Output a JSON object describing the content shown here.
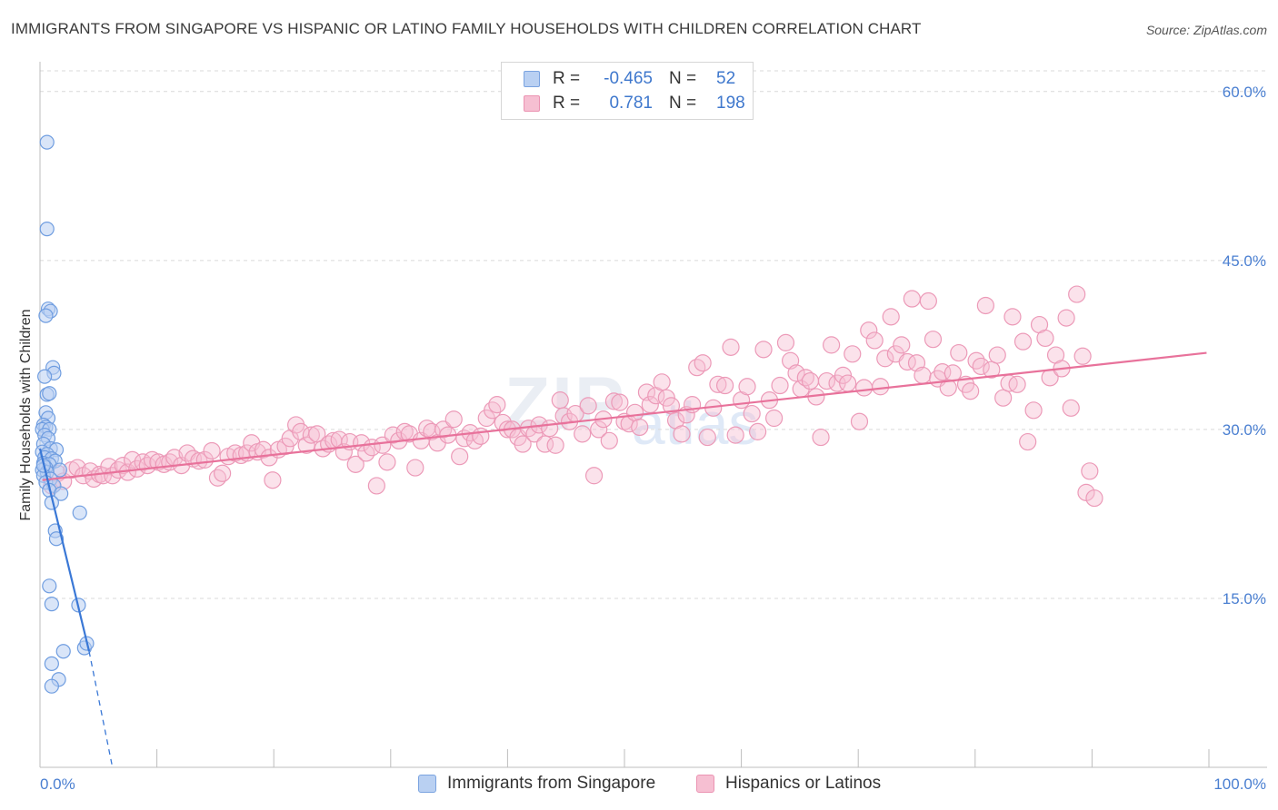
{
  "title": "IMMIGRANTS FROM SINGAPORE VS HISPANIC OR LATINO FAMILY HOUSEHOLDS WITH CHILDREN CORRELATION CHART",
  "source": "Source: ZipAtlas.com",
  "watermark": {
    "zip": "ZIP",
    "atlas": "atlas"
  },
  "legend": {
    "rows": [
      {
        "r_label": "R =",
        "r_value": "-0.465",
        "n_label": "N =",
        "n_value": "52"
      },
      {
        "r_label": "R =",
        "r_value": "0.781",
        "n_label": "N =",
        "n_value": "198"
      }
    ]
  },
  "colors": {
    "blue": "#3a78d6",
    "blue_fill": "#b9d0f2",
    "pink": "#e8729b",
    "pink_fill": "#f6bfd2",
    "tick_label": "#4a7fd1",
    "grid": "#d9d9d9"
  },
  "chart_data": {
    "type": "scatter",
    "title": "IMMIGRANTS FROM SINGAPORE VS HISPANIC OR LATINO FAMILY HOUSEHOLDS WITH CHILDREN CORRELATION CHART",
    "xlabel": "",
    "ylabel": "Family Households with Children",
    "xlim": [
      0,
      100
    ],
    "ylim": [
      0,
      62
    ],
    "x_tick_labels": [
      "0.0%",
      "100.0%"
    ],
    "y_ticks": [
      15,
      30,
      45,
      60
    ],
    "y_tick_labels": [
      "15.0%",
      "30.0%",
      "45.0%",
      "60.0%"
    ],
    "series": [
      {
        "name": "Immigrants from Singapore",
        "color": "#3a78d6",
        "r": -0.465,
        "n": 52,
        "trend": {
          "x0": 0.0,
          "y0": 28.3,
          "x1": 4.2,
          "y1": 10.3,
          "dashed_to_x": 6.2,
          "dashed_to_y": 0.0
        },
        "points": [
          [
            0.6,
            55.5
          ],
          [
            0.6,
            47.8
          ],
          [
            0.7,
            40.7
          ],
          [
            0.9,
            40.5
          ],
          [
            0.5,
            40.1
          ],
          [
            1.1,
            35.5
          ],
          [
            1.2,
            35.0
          ],
          [
            0.4,
            34.7
          ],
          [
            0.6,
            33.1
          ],
          [
            0.8,
            33.2
          ],
          [
            0.5,
            31.5
          ],
          [
            0.7,
            31.0
          ],
          [
            0.3,
            30.4
          ],
          [
            0.5,
            30.2
          ],
          [
            0.2,
            30.0
          ],
          [
            0.8,
            30.0
          ],
          [
            0.4,
            29.5
          ],
          [
            0.7,
            29.2
          ],
          [
            0.3,
            28.7
          ],
          [
            0.9,
            28.3
          ],
          [
            1.4,
            28.2
          ],
          [
            0.2,
            28.0
          ],
          [
            0.6,
            27.8
          ],
          [
            0.4,
            27.5
          ],
          [
            1.0,
            27.4
          ],
          [
            1.3,
            27.2
          ],
          [
            0.3,
            27.0
          ],
          [
            0.8,
            26.9
          ],
          [
            0.5,
            26.6
          ],
          [
            0.2,
            26.4
          ],
          [
            1.7,
            26.4
          ],
          [
            0.6,
            26.2
          ],
          [
            0.3,
            25.9
          ],
          [
            0.9,
            25.6
          ],
          [
            0.5,
            25.3
          ],
          [
            1.2,
            25.0
          ],
          [
            0.8,
            24.6
          ],
          [
            1.8,
            24.3
          ],
          [
            1.0,
            23.5
          ],
          [
            3.4,
            22.6
          ],
          [
            1.3,
            21.0
          ],
          [
            1.4,
            20.3
          ],
          [
            0.8,
            16.1
          ],
          [
            1.0,
            14.5
          ],
          [
            3.3,
            14.4
          ],
          [
            3.8,
            10.6
          ],
          [
            4.0,
            11.0
          ],
          [
            2.0,
            10.3
          ],
          [
            1.0,
            9.2
          ],
          [
            1.6,
            7.8
          ],
          [
            1.0,
            7.2
          ],
          [
            0.3,
            26.8
          ]
        ]
      },
      {
        "name": "Hispanics or Latinos",
        "color": "#e8729b",
        "r": 0.781,
        "n": 198,
        "trend": {
          "x0": 0.2,
          "y0": 25.5,
          "x1": 99.8,
          "y1": 36.8
        },
        "points": [
          [
            1.0,
            25.0
          ],
          [
            1.5,
            26.1
          ],
          [
            2.0,
            25.4
          ],
          [
            2.7,
            26.4
          ],
          [
            3.2,
            26.6
          ],
          [
            3.7,
            25.9
          ],
          [
            4.3,
            26.3
          ],
          [
            4.6,
            25.6
          ],
          [
            5.1,
            26.0
          ],
          [
            5.4,
            25.9
          ],
          [
            5.9,
            26.7
          ],
          [
            6.2,
            25.9
          ],
          [
            6.7,
            26.4
          ],
          [
            7.1,
            26.8
          ],
          [
            7.5,
            26.2
          ],
          [
            7.9,
            27.3
          ],
          [
            8.3,
            26.5
          ],
          [
            8.8,
            27.1
          ],
          [
            9.2,
            26.8
          ],
          [
            9.6,
            27.3
          ],
          [
            10.1,
            27.1
          ],
          [
            10.6,
            26.9
          ],
          [
            11.1,
            27.1
          ],
          [
            11.5,
            27.5
          ],
          [
            12.1,
            26.8
          ],
          [
            12.6,
            27.9
          ],
          [
            13.1,
            27.4
          ],
          [
            13.6,
            27.2
          ],
          [
            14.1,
            27.3
          ],
          [
            14.7,
            28.1
          ],
          [
            15.2,
            25.7
          ],
          [
            15.6,
            26.1
          ],
          [
            16.1,
            27.6
          ],
          [
            16.7,
            27.9
          ],
          [
            17.2,
            27.7
          ],
          [
            17.7,
            27.9
          ],
          [
            18.1,
            28.8
          ],
          [
            18.6,
            28.0
          ],
          [
            19.1,
            28.2
          ],
          [
            19.6,
            27.5
          ],
          [
            19.9,
            25.5
          ],
          [
            20.4,
            28.2
          ],
          [
            21.0,
            28.5
          ],
          [
            21.4,
            29.2
          ],
          [
            21.9,
            30.4
          ],
          [
            22.3,
            29.8
          ],
          [
            22.8,
            28.6
          ],
          [
            23.2,
            29.5
          ],
          [
            23.7,
            29.6
          ],
          [
            24.2,
            28.3
          ],
          [
            24.7,
            28.7
          ],
          [
            25.1,
            29.0
          ],
          [
            25.6,
            29.1
          ],
          [
            26.0,
            28.0
          ],
          [
            26.5,
            28.9
          ],
          [
            27.0,
            26.9
          ],
          [
            27.5,
            28.8
          ],
          [
            27.9,
            27.9
          ],
          [
            28.4,
            28.4
          ],
          [
            28.8,
            25.0
          ],
          [
            29.3,
            28.6
          ],
          [
            29.7,
            27.1
          ],
          [
            30.2,
            29.5
          ],
          [
            30.7,
            29.0
          ],
          [
            31.2,
            29.8
          ],
          [
            31.6,
            29.6
          ],
          [
            32.1,
            26.6
          ],
          [
            32.6,
            29.0
          ],
          [
            33.1,
            30.1
          ],
          [
            33.5,
            29.8
          ],
          [
            34.0,
            28.8
          ],
          [
            34.5,
            30.0
          ],
          [
            34.9,
            29.5
          ],
          [
            35.4,
            30.9
          ],
          [
            35.9,
            27.6
          ],
          [
            36.3,
            29.2
          ],
          [
            36.8,
            29.7
          ],
          [
            37.2,
            29.0
          ],
          [
            37.7,
            29.4
          ],
          [
            38.2,
            31.0
          ],
          [
            38.7,
            31.7
          ],
          [
            39.1,
            32.2
          ],
          [
            39.6,
            30.6
          ],
          [
            40.0,
            30.0
          ],
          [
            40.4,
            30.0
          ],
          [
            40.9,
            29.3
          ],
          [
            41.3,
            28.7
          ],
          [
            41.8,
            30.1
          ],
          [
            42.3,
            29.6
          ],
          [
            42.7,
            30.4
          ],
          [
            43.2,
            28.7
          ],
          [
            43.6,
            30.1
          ],
          [
            44.1,
            28.6
          ],
          [
            44.5,
            32.6
          ],
          [
            44.8,
            31.2
          ],
          [
            45.3,
            30.7
          ],
          [
            45.8,
            31.4
          ],
          [
            46.4,
            29.6
          ],
          [
            46.9,
            32.1
          ],
          [
            47.4,
            25.9
          ],
          [
            47.8,
            30.0
          ],
          [
            48.2,
            30.9
          ],
          [
            48.7,
            29.0
          ],
          [
            49.1,
            32.5
          ],
          [
            49.6,
            32.4
          ],
          [
            50.0,
            30.7
          ],
          [
            50.4,
            30.5
          ],
          [
            50.9,
            31.5
          ],
          [
            51.3,
            30.2
          ],
          [
            51.9,
            33.3
          ],
          [
            52.2,
            32.2
          ],
          [
            52.7,
            33.0
          ],
          [
            53.2,
            34.2
          ],
          [
            53.6,
            32.8
          ],
          [
            54.0,
            32.1
          ],
          [
            54.4,
            30.8
          ],
          [
            54.9,
            29.6
          ],
          [
            55.3,
            31.3
          ],
          [
            55.8,
            32.2
          ],
          [
            56.2,
            35.5
          ],
          [
            56.7,
            35.9
          ],
          [
            57.1,
            29.3
          ],
          [
            57.6,
            31.9
          ],
          [
            58.0,
            34.0
          ],
          [
            58.6,
            33.9
          ],
          [
            59.1,
            37.3
          ],
          [
            59.5,
            29.5
          ],
          [
            60.0,
            32.6
          ],
          [
            60.5,
            33.8
          ],
          [
            60.9,
            31.4
          ],
          [
            61.4,
            29.8
          ],
          [
            61.9,
            37.1
          ],
          [
            62.4,
            32.6
          ],
          [
            62.8,
            31.0
          ],
          [
            63.3,
            33.9
          ],
          [
            63.8,
            37.7
          ],
          [
            64.2,
            36.1
          ],
          [
            64.7,
            35.0
          ],
          [
            65.1,
            33.6
          ],
          [
            65.5,
            34.6
          ],
          [
            65.9,
            34.3
          ],
          [
            66.4,
            32.9
          ],
          [
            66.8,
            29.3
          ],
          [
            67.3,
            34.3
          ],
          [
            67.7,
            37.5
          ],
          [
            68.2,
            34.1
          ],
          [
            68.7,
            34.8
          ],
          [
            69.1,
            34.1
          ],
          [
            69.5,
            36.7
          ],
          [
            70.1,
            30.7
          ],
          [
            70.5,
            33.7
          ],
          [
            70.9,
            38.8
          ],
          [
            71.4,
            37.9
          ],
          [
            71.9,
            33.8
          ],
          [
            72.3,
            36.3
          ],
          [
            72.8,
            40.0
          ],
          [
            73.2,
            36.7
          ],
          [
            73.7,
            37.5
          ],
          [
            74.2,
            36.0
          ],
          [
            74.6,
            41.6
          ],
          [
            75.0,
            35.9
          ],
          [
            75.5,
            34.8
          ],
          [
            76.0,
            41.4
          ],
          [
            76.4,
            38.0
          ],
          [
            76.8,
            34.5
          ],
          [
            77.2,
            35.1
          ],
          [
            77.7,
            33.7
          ],
          [
            78.1,
            35.0
          ],
          [
            78.6,
            36.8
          ],
          [
            79.2,
            34.0
          ],
          [
            79.6,
            33.4
          ],
          [
            80.1,
            36.1
          ],
          [
            80.5,
            35.6
          ],
          [
            80.9,
            41.0
          ],
          [
            81.4,
            35.3
          ],
          [
            81.9,
            36.6
          ],
          [
            82.4,
            32.8
          ],
          [
            82.9,
            34.1
          ],
          [
            83.2,
            40.0
          ],
          [
            83.6,
            34.0
          ],
          [
            84.1,
            37.8
          ],
          [
            84.5,
            28.9
          ],
          [
            85.0,
            31.7
          ],
          [
            85.5,
            39.3
          ],
          [
            86.0,
            38.1
          ],
          [
            86.4,
            34.6
          ],
          [
            86.9,
            36.6
          ],
          [
            87.4,
            35.4
          ],
          [
            87.8,
            39.9
          ],
          [
            88.2,
            31.9
          ],
          [
            88.7,
            42.0
          ],
          [
            89.2,
            36.5
          ],
          [
            89.5,
            24.4
          ],
          [
            89.8,
            26.3
          ],
          [
            90.2,
            23.9
          ]
        ]
      }
    ]
  },
  "bottom_legend": [
    {
      "label": "Immigrants from Singapore"
    },
    {
      "label": "Hispanics or Latinos"
    }
  ]
}
